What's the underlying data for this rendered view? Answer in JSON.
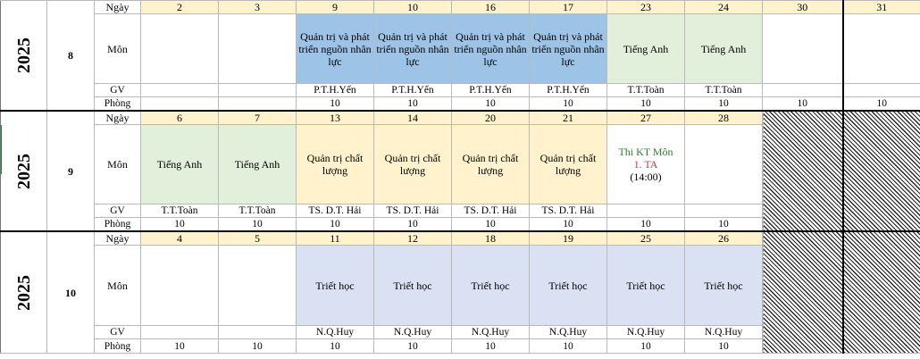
{
  "labels": {
    "day": "Ngày",
    "subject": "Môn",
    "teacher": "GV",
    "room": "Phòng"
  },
  "blocks": [
    {
      "year": "2025",
      "month": "8",
      "days": [
        "2",
        "3",
        "9",
        "10",
        "16",
        "17",
        "23",
        "24",
        "30",
        "31"
      ],
      "subjects": [
        "",
        "",
        "Quản trị và phát triển nguồn nhân lực",
        "Quản trị và phát triển nguồn nhân lực",
        "Quản trị và phát triển nguồn nhân lực",
        "Quản trị và phát triển nguồn nhân lực",
        "Tiếng Anh",
        "Tiếng Anh",
        "",
        ""
      ],
      "subject_colors": [
        "none",
        "none",
        "blue",
        "blue",
        "blue",
        "blue",
        "green",
        "green",
        "none",
        "none"
      ],
      "teachers": [
        "",
        "",
        "P.T.H.Yến",
        "P.T.H.Yến",
        "P.T.H.Yến",
        "P.T.H.Yến",
        "T.T.Toàn",
        "T.T.Toàn",
        "",
        ""
      ],
      "rooms": [
        "",
        "",
        "10",
        "10",
        "10",
        "10",
        "10",
        "10",
        "10",
        "10"
      ]
    },
    {
      "year": "2025",
      "month": "9",
      "days": [
        "6",
        "7",
        "13",
        "14",
        "20",
        "21",
        "27",
        "28",
        "",
        ""
      ],
      "subjects": [
        "Tiếng Anh",
        "Tiếng Anh",
        "Quản trị chất lượng",
        "Quản trị chất lượng",
        "Quản trị chất lượng",
        "Quản trị chất lượng",
        "",
        "",
        "",
        ""
      ],
      "subject_colors": [
        "green",
        "green",
        "cream",
        "cream",
        "cream",
        "cream",
        "none",
        "none",
        "hatch",
        "hatch"
      ],
      "exam": {
        "line1": "Thi KT  Môn",
        "line2": "1. TA",
        "line3": "(14:00)"
      },
      "teachers": [
        "T.T.Toàn",
        "T.T.Toàn",
        "TS. D.T. Hải",
        "TS. D.T. Hải",
        "TS. D.T. Hải",
        "TS. D.T. Hải",
        "",
        "",
        "",
        ""
      ],
      "rooms": [
        "10",
        "10",
        "10",
        "10",
        "10",
        "10",
        "10",
        "10",
        "",
        ""
      ]
    },
    {
      "year": "2025",
      "month": "10",
      "days": [
        "4",
        "5",
        "11",
        "12",
        "18",
        "19",
        "25",
        "26",
        "",
        ""
      ],
      "subjects": [
        "",
        "",
        "Triết học",
        "Triết học",
        "Triết học",
        "Triết học",
        "Triết học",
        "Triết học",
        "",
        ""
      ],
      "subject_colors": [
        "none",
        "none",
        "lav",
        "lav",
        "lav",
        "lav",
        "lav",
        "lav",
        "hatch",
        "hatch"
      ],
      "teachers": [
        "",
        "",
        "N.Q.Huy",
        "N.Q.Huy",
        "N.Q.Huy",
        "N.Q.Huy",
        "N.Q.Huy",
        "N.Q.Huy",
        "",
        ""
      ],
      "rooms": [
        "10",
        "10",
        "10",
        "10",
        "10",
        "10",
        "10",
        "10",
        "",
        ""
      ]
    }
  ]
}
